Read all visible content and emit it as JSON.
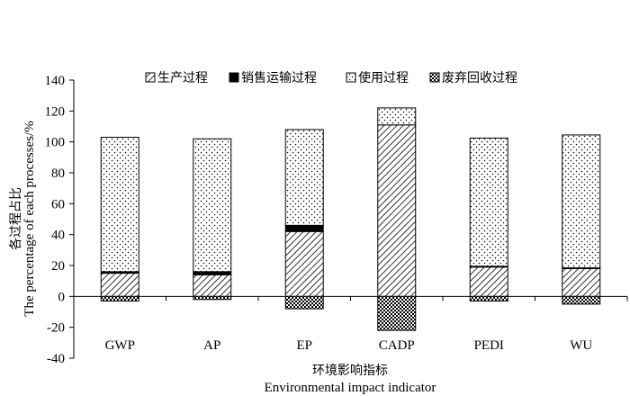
{
  "chart_data": {
    "type": "bar",
    "stacked": true,
    "categories": [
      "GWP",
      "AP",
      "EP",
      "CADP",
      "PEDI",
      "WU"
    ],
    "series": [
      {
        "name": "生产过程",
        "pattern": "diagonal-hatch",
        "values": [
          15,
          14,
          42,
          111,
          19,
          18
        ]
      },
      {
        "name": "销售运输过程",
        "pattern": "solid",
        "values": [
          1,
          2,
          4,
          0,
          0.5,
          0.5
        ]
      },
      {
        "name": "使用过程",
        "pattern": "dots",
        "values": [
          87,
          86,
          62,
          11,
          83,
          86
        ]
      },
      {
        "name": "废弃回收过程",
        "pattern": "checker",
        "values": [
          -3,
          -2,
          -8,
          -22,
          -3,
          -5
        ]
      }
    ],
    "ylim": [
      -40,
      140
    ],
    "yticks": [
      -40,
      -20,
      0,
      20,
      40,
      60,
      80,
      100,
      120,
      140
    ],
    "ylabel_cn": "各过程占比",
    "ylabel_en": "The percentage of each processes/%",
    "xlabel_cn": "环境影响指标",
    "xlabel_en": "Environmental impact indicator",
    "legend_position": "top",
    "grid": false
  }
}
